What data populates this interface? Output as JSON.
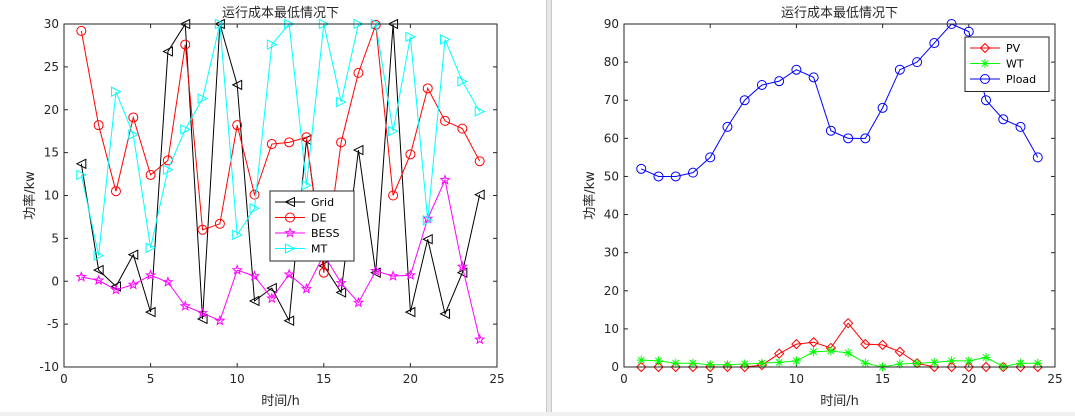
{
  "charts": [
    {
      "type": "line",
      "title": "运行成本最低情况下",
      "xlabel": "时间/h",
      "ylabel": "功率/kw",
      "xlim": [
        0,
        25
      ],
      "ylim": [
        -10,
        30
      ],
      "xticks": [
        0,
        5,
        10,
        15,
        20,
        25
      ],
      "yticks": [
        -10,
        -5,
        0,
        5,
        10,
        15,
        20,
        25,
        30
      ],
      "legend_position": "center-right",
      "x": [
        1,
        2,
        3,
        4,
        5,
        6,
        7,
        8,
        9,
        10,
        11,
        12,
        13,
        14,
        15,
        16,
        17,
        18,
        19,
        20,
        21,
        22,
        23,
        24
      ],
      "series": [
        {
          "name": "Grid",
          "color": "#000000",
          "marker": "triangle-left",
          "values": [
            13.7,
            1.3,
            -0.6,
            3.1,
            -3.6,
            26.8,
            30.0,
            -4.4,
            30.0,
            22.9,
            -2.3,
            -0.8,
            -4.6,
            16.5,
            1.8,
            -1.3,
            15.3,
            1.0,
            30.0,
            -3.6,
            4.9,
            -3.8,
            1.0,
            10.1
          ]
        },
        {
          "name": "DE",
          "color": "#ff0000",
          "marker": "circle",
          "values": [
            29.2,
            18.2,
            10.5,
            19.1,
            12.4,
            14.1,
            27.6,
            6.0,
            6.7,
            18.2,
            10.1,
            16.0,
            16.2,
            16.8,
            1.0,
            16.2,
            24.3,
            29.9,
            10.0,
            14.8,
            22.5,
            18.7,
            17.8,
            14.0
          ]
        },
        {
          "name": "BESS",
          "color": "#ff00ff",
          "marker": "star",
          "values": [
            0.5,
            0.1,
            -1.0,
            -0.4,
            0.7,
            -0.1,
            -2.9,
            -3.7,
            -4.6,
            1.3,
            0.6,
            -2.0,
            0.8,
            -0.9,
            3.1,
            -0.2,
            -2.5,
            1.2,
            0.6,
            0.7,
            7.3,
            11.8,
            1.7,
            -6.8
          ]
        },
        {
          "name": "MT",
          "color": "#00ffff",
          "marker": "triangle-right",
          "values": [
            12.4,
            3.0,
            22.1,
            17.1,
            3.9,
            13.0,
            17.7,
            21.3,
            30.0,
            5.4,
            8.5,
            27.6,
            30.0,
            11.2,
            30.0,
            20.9,
            30.0,
            30.0,
            17.5,
            28.5,
            7.1,
            28.2,
            23.3,
            19.8
          ]
        }
      ]
    },
    {
      "type": "line",
      "title": "运行成本最低情况下",
      "xlabel": "时间/h",
      "ylabel": "功率/kw",
      "xlim": [
        0,
        25
      ],
      "ylim": [
        0,
        90
      ],
      "xticks": [
        0,
        5,
        10,
        15,
        20,
        25
      ],
      "yticks": [
        0,
        10,
        20,
        30,
        40,
        50,
        60,
        70,
        80,
        90
      ],
      "legend_position": "top-right",
      "x": [
        1,
        2,
        3,
        4,
        5,
        6,
        7,
        8,
        9,
        10,
        11,
        12,
        13,
        14,
        15,
        16,
        17,
        18,
        19,
        20,
        21,
        22,
        23,
        24
      ],
      "series": [
        {
          "name": "PV",
          "color": "#ff0000",
          "marker": "diamond",
          "values": [
            0,
            0,
            0,
            0,
            0,
            0,
            0,
            0.5,
            3.5,
            6.0,
            6.5,
            5.0,
            11.5,
            6.0,
            5.8,
            4.0,
            1.0,
            0,
            0,
            0,
            0,
            0,
            0,
            0
          ]
        },
        {
          "name": "WT",
          "color": "#00ff00",
          "marker": "asterisk",
          "values": [
            1.8,
            1.6,
            1.0,
            1.0,
            0.6,
            0.6,
            0.8,
            1.0,
            1.2,
            1.6,
            4.0,
            4.2,
            3.7,
            1.0,
            0,
            0.8,
            1.0,
            1.2,
            1.6,
            1.6,
            2.5,
            0.1,
            1.0,
            1.0
          ]
        },
        {
          "name": "Pload",
          "color": "#0000ff",
          "marker": "circle",
          "values": [
            52,
            50,
            50,
            51,
            55,
            63,
            70,
            74,
            75,
            78,
            76,
            62,
            60,
            60,
            68,
            78,
            80,
            85,
            90,
            88,
            70,
            65,
            63,
            55
          ]
        }
      ]
    }
  ]
}
